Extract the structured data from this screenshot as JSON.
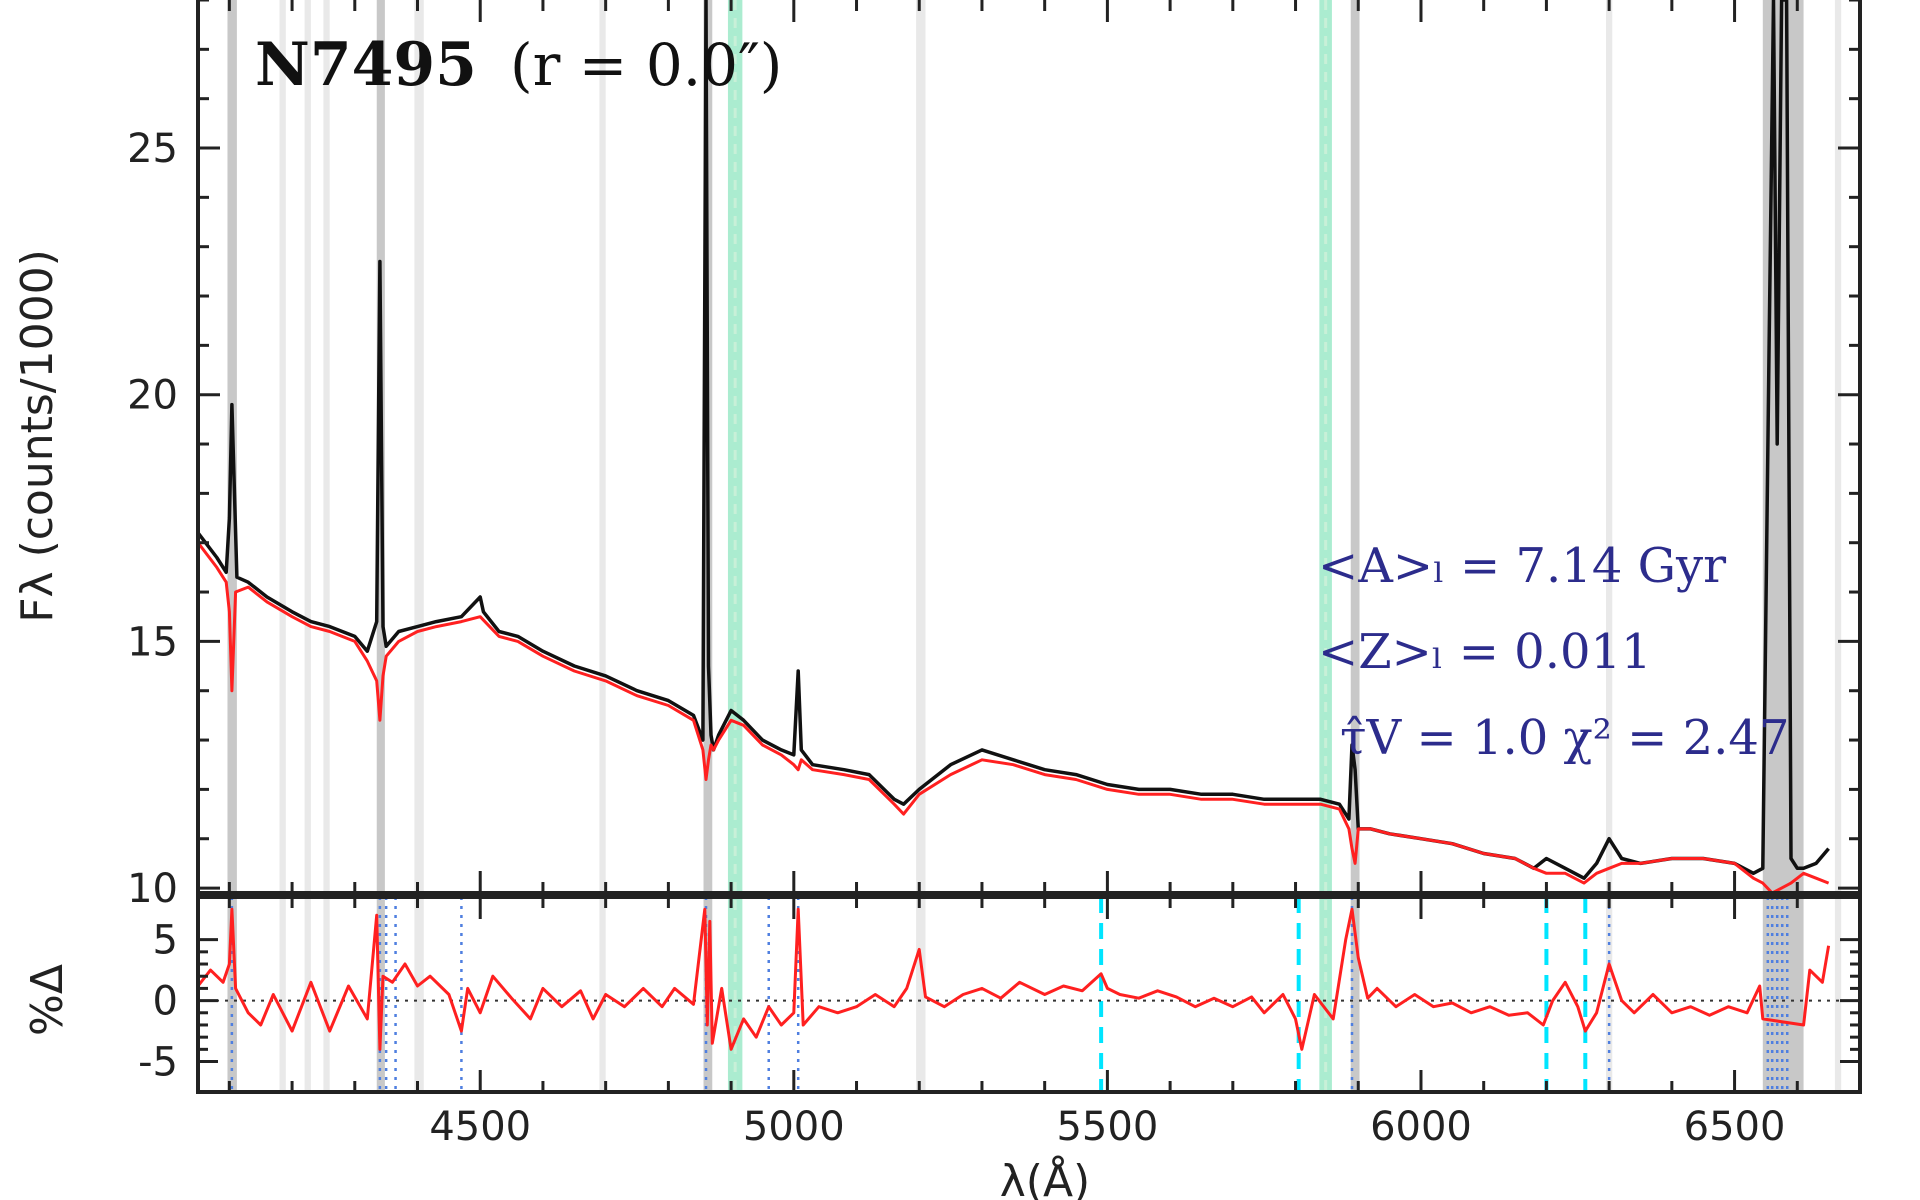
{
  "chart_data": {
    "type": "line",
    "title_bold": "N7495",
    "title_rest": "(r = 0.0″)",
    "xlabel": "λ(Å)",
    "ylabel_top": "Fλ (counts/1000)",
    "ylabel_bottom": "%Δ",
    "xlim": [
      4050,
      6700
    ],
    "ylim_top": [
      9.9,
      28
    ],
    "ylim_bottom": [
      -7.5,
      8.5
    ],
    "x_ticks": [
      4500,
      5000,
      5500,
      6000,
      6500
    ],
    "y_ticks_top": [
      10,
      15,
      20,
      25
    ],
    "y_ticks_bottom": [
      -5,
      0,
      5
    ],
    "annotations": {
      "age": "<A>ₗ = 7.14 Gyr",
      "metallicity": "<Z>ₗ = 0.011",
      "tau": "τ̂V = 1.0  χ² = 2.47"
    },
    "colors": {
      "observed": "#111111",
      "model": "#ff2020",
      "masked_region": "#c8c8c8",
      "light_region": "#e9e9e9",
      "cyan_marker": "#00e5ff",
      "green_band": "#66ddaa",
      "blue_dotted": "#4f7fe0",
      "annotation": "#2c2c8c"
    },
    "masked_regions": [
      [
        4097,
        4112
      ],
      [
        4335,
        4348
      ],
      [
        4856,
        4870
      ],
      [
        5888,
        5902
      ],
      [
        6545,
        6610
      ]
    ],
    "light_regions": [
      [
        4180,
        4190
      ],
      [
        4220,
        4230
      ],
      [
        4250,
        4260
      ],
      [
        4395,
        4410
      ],
      [
        4690,
        4700
      ],
      [
        5195,
        5210
      ],
      [
        6295,
        6305
      ],
      [
        6660,
        6670
      ]
    ],
    "green_bands": [
      [
        4895,
        4918
      ],
      [
        5838,
        5858
      ]
    ],
    "cyan_dashed_x": [
      5490,
      5805,
      6200,
      6262
    ],
    "blue_dotted_x": [
      4104,
      4340,
      4350,
      4365,
      4470,
      4860,
      4960,
      5007,
      5890,
      6300,
      6553,
      6560,
      6568,
      6576,
      6584
    ],
    "observed_series": {
      "name": "observed",
      "x": [
        4050,
        4080,
        4095,
        4100,
        4104,
        4112,
        4130,
        4160,
        4200,
        4230,
        4260,
        4300,
        4320,
        4335,
        4340,
        4345,
        4350,
        4370,
        4400,
        4430,
        4470,
        4500,
        4505,
        4530,
        4560,
        4600,
        4650,
        4700,
        4750,
        4800,
        4840,
        4855,
        4860,
        4864,
        4868,
        4872,
        4880,
        4900,
        4920,
        4950,
        4980,
        5000,
        5007,
        5012,
        5030,
        5080,
        5120,
        5160,
        5175,
        5200,
        5250,
        5300,
        5350,
        5400,
        5450,
        5500,
        5550,
        5600,
        5650,
        5700,
        5750,
        5800,
        5840,
        5870,
        5885,
        5890,
        5895,
        5900,
        5920,
        5950,
        6000,
        6050,
        6100,
        6150,
        6180,
        6200,
        6230,
        6260,
        6280,
        6300,
        6320,
        6350,
        6400,
        6450,
        6500,
        6530,
        6545,
        6555,
        6562,
        6568,
        6575,
        6583,
        6590,
        6600,
        6610,
        6630,
        6650
      ],
      "y": [
        17.2,
        16.7,
        16.4,
        17.5,
        19.8,
        16.3,
        16.2,
        15.9,
        15.6,
        15.4,
        15.3,
        15.1,
        14.8,
        15.4,
        22.7,
        15.3,
        14.9,
        15.2,
        15.3,
        15.4,
        15.5,
        15.9,
        15.6,
        15.2,
        15.1,
        14.8,
        14.5,
        14.3,
        14.0,
        13.8,
        13.5,
        13.0,
        28,
        14.5,
        13.1,
        12.8,
        13.1,
        13.6,
        13.4,
        13.0,
        12.8,
        12.7,
        14.4,
        12.8,
        12.5,
        12.4,
        12.3,
        11.8,
        11.7,
        12.0,
        12.5,
        12.8,
        12.6,
        12.4,
        12.3,
        12.1,
        12.0,
        12.0,
        11.9,
        11.9,
        11.8,
        11.8,
        11.8,
        11.7,
        11.4,
        12.9,
        12.4,
        11.2,
        11.2,
        11.1,
        11.0,
        10.9,
        10.7,
        10.6,
        10.4,
        10.6,
        10.4,
        10.2,
        10.5,
        11.0,
        10.6,
        10.5,
        10.6,
        10.6,
        10.5,
        10.3,
        10.4,
        21,
        28,
        19,
        28,
        28,
        10.6,
        10.4,
        10.4,
        10.5,
        10.8
      ]
    },
    "model_series": {
      "name": "model",
      "x": [
        4050,
        4080,
        4095,
        4100,
        4104,
        4110,
        4130,
        4160,
        4200,
        4230,
        4260,
        4300,
        4320,
        4335,
        4340,
        4345,
        4350,
        4370,
        4400,
        4430,
        4470,
        4500,
        4530,
        4560,
        4600,
        4650,
        4700,
        4750,
        4800,
        4840,
        4855,
        4860,
        4864,
        4868,
        4872,
        4880,
        4900,
        4920,
        4950,
        4980,
        5000,
        5007,
        5012,
        5030,
        5080,
        5120,
        5160,
        5175,
        5200,
        5250,
        5300,
        5350,
        5400,
        5450,
        5500,
        5550,
        5600,
        5650,
        5700,
        5750,
        5800,
        5840,
        5870,
        5885,
        5890,
        5895,
        5900,
        5920,
        5950,
        6000,
        6050,
        6100,
        6150,
        6180,
        6200,
        6230,
        6260,
        6280,
        6300,
        6320,
        6350,
        6400,
        6450,
        6500,
        6530,
        6545,
        6560,
        6575,
        6590,
        6600,
        6610,
        6630,
        6650
      ],
      "y": [
        17.0,
        16.5,
        16.2,
        15.6,
        14.0,
        16.0,
        16.1,
        15.8,
        15.5,
        15.3,
        15.2,
        15.0,
        14.6,
        14.2,
        13.4,
        14.3,
        14.7,
        15.0,
        15.2,
        15.3,
        15.4,
        15.5,
        15.1,
        15.0,
        14.7,
        14.4,
        14.2,
        13.9,
        13.7,
        13.4,
        12.8,
        12.2,
        12.6,
        12.9,
        12.8,
        13.0,
        13.4,
        13.3,
        12.9,
        12.7,
        12.5,
        12.4,
        12.6,
        12.4,
        12.3,
        12.2,
        11.7,
        11.5,
        11.9,
        12.3,
        12.6,
        12.5,
        12.3,
        12.2,
        12.0,
        11.9,
        11.9,
        11.8,
        11.8,
        11.7,
        11.7,
        11.7,
        11.6,
        11.2,
        10.8,
        10.5,
        11.2,
        11.2,
        11.1,
        11.0,
        10.9,
        10.7,
        10.6,
        10.4,
        10.3,
        10.3,
        10.1,
        10.3,
        10.4,
        10.5,
        10.5,
        10.6,
        10.6,
        10.5,
        10.2,
        10.1,
        9.9,
        10.0,
        10.1,
        10.2,
        10.3,
        10.2,
        10.1
      ]
    },
    "residual_series": {
      "name": "residual",
      "x": [
        4050,
        4070,
        4090,
        4100,
        4104,
        4110,
        4130,
        4150,
        4170,
        4200,
        4230,
        4260,
        4290,
        4320,
        4335,
        4340,
        4345,
        4360,
        4380,
        4400,
        4420,
        4450,
        4470,
        4480,
        4500,
        4520,
        4550,
        4580,
        4600,
        4630,
        4660,
        4680,
        4700,
        4730,
        4760,
        4790,
        4810,
        4840,
        4858,
        4862,
        4866,
        4870,
        4885,
        4900,
        4920,
        4940,
        4960,
        4980,
        5000,
        5007,
        5015,
        5040,
        5070,
        5100,
        5130,
        5160,
        5180,
        5200,
        5210,
        5240,
        5270,
        5300,
        5330,
        5360,
        5400,
        5430,
        5460,
        5490,
        5500,
        5520,
        5550,
        5580,
        5610,
        5640,
        5670,
        5700,
        5730,
        5750,
        5780,
        5800,
        5810,
        5830,
        5860,
        5880,
        5890,
        5900,
        5915,
        5930,
        5960,
        5990,
        6020,
        6050,
        6080,
        6110,
        6140,
        6170,
        6195,
        6210,
        6230,
        6250,
        6262,
        6280,
        6300,
        6320,
        6340,
        6370,
        6400,
        6430,
        6460,
        6490,
        6520,
        6540,
        6545,
        6610,
        6620,
        6640,
        6650
      ],
      "y": [
        1.2,
        2.5,
        1.5,
        3.0,
        7.5,
        1.0,
        -1.0,
        -2.0,
        0.5,
        -2.5,
        1.5,
        -2.5,
        1.2,
        -1.5,
        7.0,
        -4.0,
        2.0,
        1.5,
        3.0,
        1.2,
        2.0,
        0.5,
        -2.5,
        1.0,
        -1.0,
        2.0,
        0.2,
        -1.5,
        1.0,
        -0.5,
        0.8,
        -1.5,
        0.5,
        -0.5,
        1.0,
        -0.5,
        1.0,
        -0.3,
        7.5,
        -2.0,
        6.5,
        -3.5,
        1.0,
        -4.0,
        -1.5,
        -3.0,
        -0.5,
        -2.0,
        -1.0,
        7.5,
        -2.0,
        -0.5,
        -1.0,
        -0.5,
        0.5,
        -0.5,
        1.0,
        4.2,
        0.3,
        -0.5,
        0.5,
        1.0,
        0.2,
        1.5,
        0.5,
        1.2,
        0.8,
        2.2,
        1.0,
        0.5,
        0.2,
        0.8,
        0.3,
        -0.5,
        0.2,
        -0.5,
        0.3,
        -1.0,
        0.5,
        -1.5,
        -4.0,
        0.5,
        -1.5,
        5.0,
        7.5,
        3.5,
        0.2,
        1.0,
        -0.5,
        0.5,
        -0.5,
        -0.2,
        -1.0,
        -0.5,
        -1.2,
        -1.0,
        -2.0,
        0.0,
        1.5,
        -0.5,
        -2.5,
        -1.0,
        3.0,
        0.0,
        -1.0,
        0.5,
        -1.0,
        -0.5,
        -1.2,
        -0.5,
        -1.0,
        1.2,
        -1.5,
        -2.0,
        2.5,
        1.5,
        4.5
      ]
    }
  }
}
